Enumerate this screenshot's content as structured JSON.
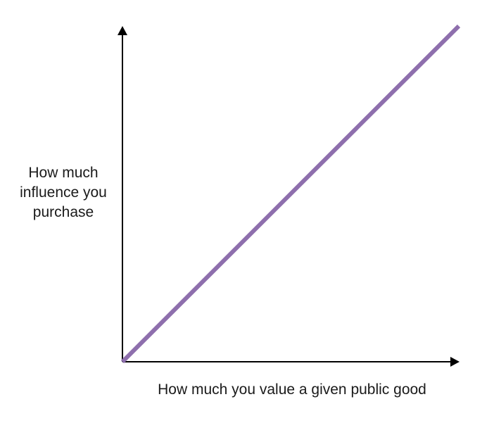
{
  "chart_data": {
    "type": "line",
    "title": "",
    "xlabel": "How much you value a given public good",
    "ylabel": "How much\ninfluence you\npurchase",
    "x_ticks": [],
    "y_ticks": [],
    "xlim": [
      0,
      1
    ],
    "ylim": [
      0,
      1
    ],
    "grid": false,
    "legend": "none",
    "series": [
      {
        "color": "#8e6fad",
        "points": [
          {
            "x": 0,
            "y": 0
          },
          {
            "x": 1,
            "y": 1
          }
        ]
      }
    ]
  },
  "colors": {
    "axis": "#000000",
    "line": "#8e6fad",
    "text": "#1a1a1a",
    "background": "#ffffff"
  }
}
